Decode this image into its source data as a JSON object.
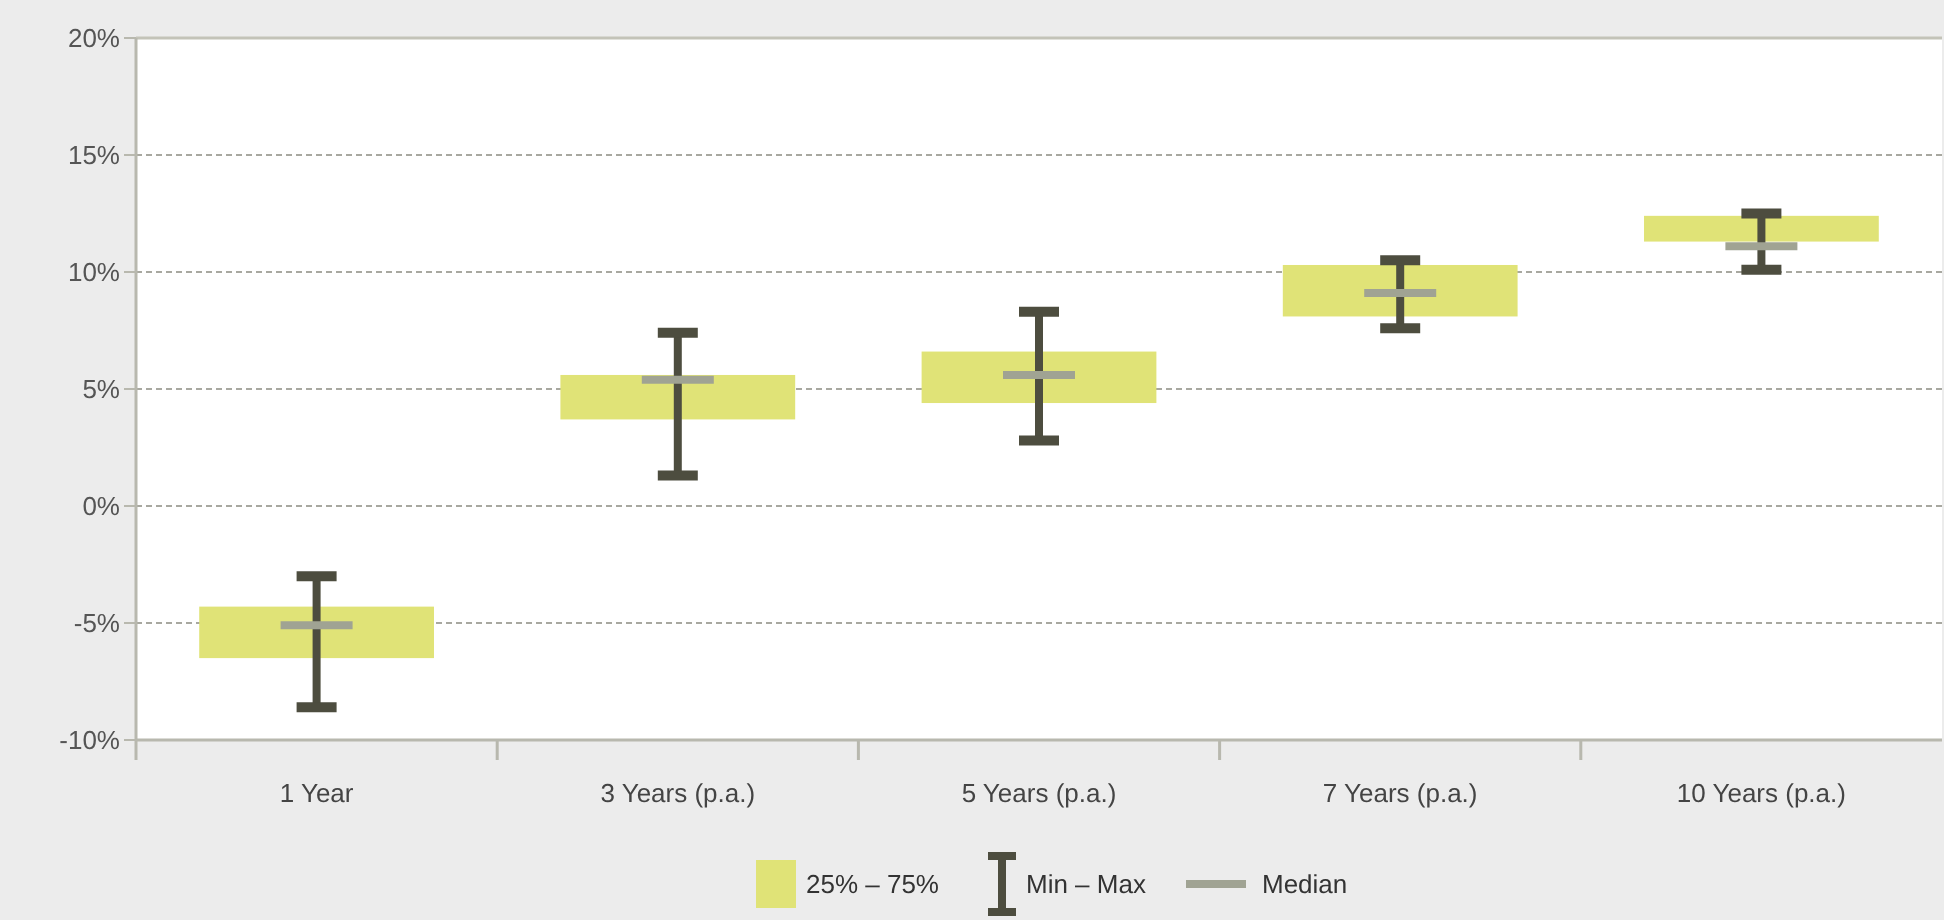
{
  "chart_data": {
    "type": "box",
    "categories": [
      "1 Year",
      "3 Years (p.a.)",
      "5 Years (p.a.)",
      "7 Years (p.a.)",
      "10 Years (p.a.)"
    ],
    "boxes": [
      {
        "low": -8.6,
        "q1": -6.5,
        "median": -5.1,
        "q3": -4.3,
        "high": -3.0
      },
      {
        "low": 1.3,
        "q1": 3.7,
        "median": 5.4,
        "q3": 5.6,
        "high": 7.4
      },
      {
        "low": 2.8,
        "q1": 4.4,
        "median": 5.6,
        "q3": 6.6,
        "high": 8.3
      },
      {
        "low": 7.6,
        "q1": 8.1,
        "median": 9.1,
        "q3": 10.3,
        "high": 10.5
      },
      {
        "low": 10.1,
        "q1": 11.3,
        "median": 11.1,
        "q3": 12.4,
        "high": 12.5
      }
    ],
    "annotations": [
      "25% – 75%",
      "Min – Max",
      "Median"
    ],
    "ylim": [
      -10,
      20
    ],
    "yticks": [
      {
        "value": -10,
        "label": "-10%"
      },
      {
        "value": -5,
        "label": "-5%"
      },
      {
        "value": 0,
        "label": "0%"
      },
      {
        "value": 5,
        "label": "5%"
      },
      {
        "value": 10,
        "label": "10%"
      },
      {
        "value": 15,
        "label": "15%"
      },
      {
        "value": 20,
        "label": "20%"
      }
    ],
    "grid": "y"
  }
}
